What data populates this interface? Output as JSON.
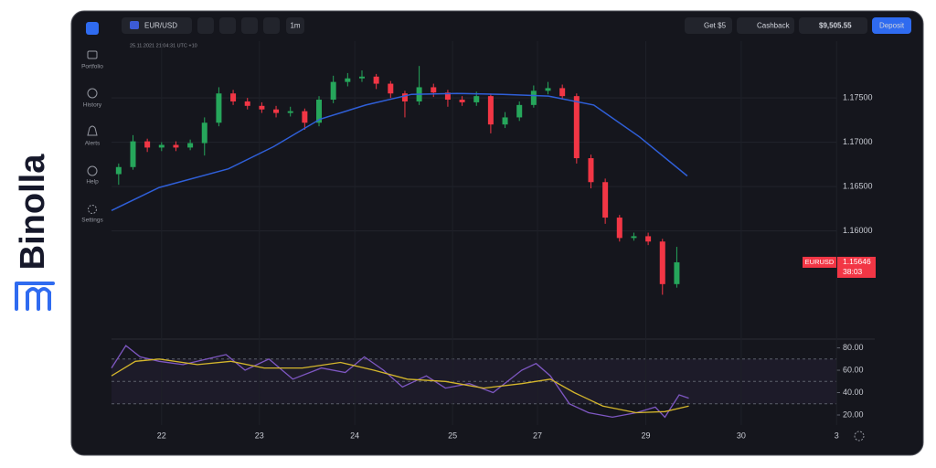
{
  "brand": "Binolla",
  "sidebar": [
    "Portfolio",
    "History",
    "Alerts",
    "Help",
    "Settings"
  ],
  "toolbar": {
    "symbol": "EUR/USD",
    "timeframe": "1m",
    "bonus": "Get $5",
    "cashback": "Cashback",
    "balance": "$9,505.55",
    "deposit": "Deposit"
  },
  "timestamp": "25.11.2021 21:04:31 UTC +10",
  "chart_data": [
    {
      "type": "candlestick",
      "up_color": "#26a65b",
      "down_color": "#f23645",
      "symbol_tag": "EURUSD",
      "timer": "38:03",
      "xlim": [
        0,
        160
      ],
      "ylim": [
        1.1479,
        1.1814
      ],
      "yticks": [
        {
          "value": 1.175,
          "label": "1.17500"
        },
        {
          "value": 1.17,
          "label": "1.17000"
        },
        {
          "value": 1.165,
          "label": "1.16500"
        },
        {
          "value": 1.16,
          "label": "1.16000"
        }
      ],
      "x": [
        1.5,
        4.5,
        7.5,
        10.5,
        13.5,
        16.5,
        19.5,
        22.5,
        25.5,
        28.5,
        31.5,
        34.5,
        37.5,
        40.5,
        43.5,
        46.5,
        49.5,
        52.5,
        55.5,
        58.5,
        61.5,
        64.5,
        67.5,
        70.5,
        73.5,
        76.5,
        79.5,
        82.5,
        85.5,
        88.5,
        91.5,
        94.5,
        97.5,
        100.5,
        103.5,
        106.5,
        109.5,
        112.5,
        115.5,
        118.5
      ],
      "open": [
        1.1664,
        1.1672,
        1.1701,
        1.1694,
        1.1697,
        1.1694,
        1.1699,
        1.1722,
        1.1755,
        1.1746,
        1.1741,
        1.1737,
        1.1733,
        1.1735,
        1.1722,
        1.1748,
        1.1768,
        1.1772,
        1.1774,
        1.1766,
        1.1755,
        1.1746,
        1.1762,
        1.1756,
        1.1748,
        1.1745,
        1.1752,
        1.172,
        1.1728,
        1.1742,
        1.1758,
        1.1761,
        1.1752,
        1.1682,
        1.1655,
        1.1615,
        1.1592,
        1.1594,
        1.1588,
        1.154
      ],
      "high": [
        1.1676,
        1.1708,
        1.1704,
        1.17,
        1.1701,
        1.1703,
        1.1728,
        1.1762,
        1.1759,
        1.175,
        1.1745,
        1.1741,
        1.174,
        1.1738,
        1.1752,
        1.1775,
        1.1778,
        1.1781,
        1.1777,
        1.1769,
        1.1758,
        1.1786,
        1.1766,
        1.1759,
        1.1752,
        1.1757,
        1.1755,
        1.1734,
        1.1746,
        1.1764,
        1.1768,
        1.1765,
        1.1755,
        1.1686,
        1.1659,
        1.1618,
        1.1598,
        1.1598,
        1.1591,
        1.1582
      ],
      "low": [
        1.1652,
        1.1669,
        1.1689,
        1.169,
        1.169,
        1.1691,
        1.1685,
        1.1718,
        1.1742,
        1.1737,
        1.1733,
        1.1728,
        1.1729,
        1.1714,
        1.1718,
        1.1744,
        1.1763,
        1.1768,
        1.176,
        1.175,
        1.1728,
        1.1742,
        1.1751,
        1.174,
        1.1741,
        1.1741,
        1.171,
        1.1716,
        1.1724,
        1.1739,
        1.1754,
        1.1748,
        1.1676,
        1.1648,
        1.1608,
        1.1588,
        1.1589,
        1.1584,
        1.1528,
        1.1536
      ],
      "close": [
        1.1672,
        1.1701,
        1.1694,
        1.1697,
        1.1694,
        1.1699,
        1.1722,
        1.1755,
        1.1746,
        1.1741,
        1.1737,
        1.1733,
        1.1735,
        1.1722,
        1.1748,
        1.1768,
        1.1772,
        1.1774,
        1.1766,
        1.1755,
        1.1746,
        1.1762,
        1.1756,
        1.1748,
        1.1745,
        1.1752,
        1.172,
        1.1728,
        1.1742,
        1.1758,
        1.1761,
        1.1752,
        1.1682,
        1.1655,
        1.1615,
        1.1592,
        1.1594,
        1.1588,
        1.154,
        1.15646
      ],
      "ma": {
        "color": "#2f5fd8",
        "x": [
          0,
          10,
          24.5,
          34,
          43.7,
          53.3,
          62.9,
          72.4,
          82,
          91.6,
          101.1,
          110.7,
          120.7
        ],
        "values": [
          1.1623,
          1.1649,
          1.167,
          1.1695,
          1.1726,
          1.1742,
          1.1754,
          1.1755,
          1.1754,
          1.1752,
          1.1742,
          1.1706,
          1.1662
        ]
      }
    },
    {
      "type": "line",
      "xlim": [
        0,
        160
      ],
      "ylim": [
        11,
        87
      ],
      "yticks": [
        {
          "value": 80,
          "label": "80.00"
        },
        {
          "value": 60,
          "label": "60.00"
        },
        {
          "value": 40,
          "label": "40.00"
        },
        {
          "value": 20,
          "label": "20.00"
        }
      ],
      "levels": [
        70,
        50,
        30
      ],
      "xticks": [
        {
          "value": 10.5,
          "label": "22"
        },
        {
          "value": 31,
          "label": "23"
        },
        {
          "value": 51,
          "label": "24"
        },
        {
          "value": 71.5,
          "label": "25"
        },
        {
          "value": 89.3,
          "label": "27"
        },
        {
          "value": 112,
          "label": "29"
        },
        {
          "value": 132,
          "label": "30"
        },
        {
          "value": 152,
          "label": "3"
        }
      ],
      "rsi": {
        "color": "#7e57c2",
        "x": [
          0,
          3,
          6,
          10,
          15,
          20,
          24,
          28,
          33,
          38,
          44,
          49,
          53,
          57,
          61,
          66,
          70,
          75,
          80,
          86,
          89,
          92,
          96,
          100,
          105,
          110,
          114,
          116,
          119,
          121
        ],
        "values": [
          62,
          82,
          72,
          68,
          65,
          70,
          74,
          60,
          70,
          52,
          62,
          58,
          72,
          60,
          45,
          55,
          44,
          48,
          40,
          60,
          66,
          55,
          30,
          22,
          18,
          22,
          27,
          18,
          38,
          35
        ]
      },
      "signal": {
        "color": "#d4b62c",
        "x": [
          0,
          5,
          10,
          18,
          25,
          32,
          40,
          48,
          55,
          62,
          70,
          78,
          86,
          92,
          97,
          103,
          110,
          116,
          121
        ],
        "values": [
          55,
          68,
          70,
          65,
          68,
          62,
          62,
          67,
          60,
          52,
          50,
          44,
          48,
          52,
          40,
          28,
          22,
          23,
          28
        ]
      }
    }
  ]
}
